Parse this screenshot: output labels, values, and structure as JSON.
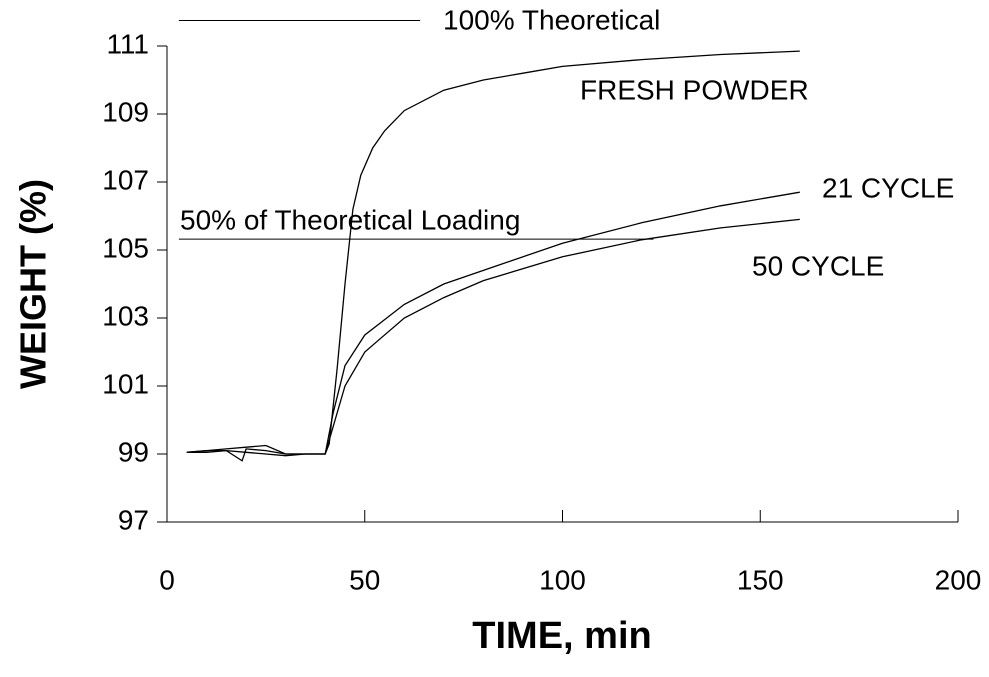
{
  "chart_data": {
    "type": "line",
    "xlabel": "TIME, min",
    "ylabel": "WEIGHT (%)",
    "xlim": [
      0,
      200
    ],
    "xticks": [
      0,
      50,
      100,
      150,
      200
    ],
    "ylim": [
      97,
      111
    ],
    "yticks": [
      97,
      99,
      101,
      103,
      105,
      107,
      109,
      111
    ],
    "series": [
      {
        "name": "FRESH POWDER",
        "color": "#000000",
        "x": [
          5,
          10,
          15,
          19,
          20,
          25,
          30,
          35,
          40,
          41,
          43,
          45,
          47,
          49,
          52,
          55,
          60,
          70,
          80,
          90,
          100,
          120,
          140,
          160
        ],
        "values": [
          99.05,
          99.1,
          99.1,
          98.8,
          99.15,
          99.1,
          99.0,
          99.0,
          99.0,
          99.3,
          101.5,
          104,
          106.2,
          107.2,
          108.0,
          108.5,
          109.1,
          109.7,
          110.0,
          110.2,
          110.4,
          110.6,
          110.75,
          110.85
        ]
      },
      {
        "name": "21 CYCLE",
        "color": "#000000",
        "x": [
          5,
          10,
          15,
          20,
          25,
          30,
          35,
          40,
          42,
          45,
          50,
          60,
          70,
          80,
          100,
          120,
          140,
          160
        ],
        "values": [
          99.05,
          99.1,
          99.15,
          99.2,
          99.25,
          99.0,
          99.0,
          99.0,
          100.2,
          101.6,
          102.5,
          103.4,
          104.0,
          104.4,
          105.2,
          105.8,
          106.3,
          106.7
        ]
      },
      {
        "name": "50 CYCLE",
        "color": "#000000",
        "x": [
          5,
          10,
          15,
          20,
          25,
          30,
          35,
          40,
          42,
          45,
          50,
          60,
          70,
          80,
          100,
          120,
          140,
          160
        ],
        "values": [
          99.05,
          99.05,
          99.1,
          99.05,
          99.0,
          98.95,
          99.0,
          99.0,
          99.8,
          101.0,
          102.0,
          103.0,
          103.6,
          104.1,
          104.8,
          105.3,
          105.65,
          105.9
        ]
      }
    ],
    "reference_lines": [
      {
        "label": "100% Theoretical",
        "y": 111.75,
        "x": [
          3,
          64
        ]
      },
      {
        "label": "50% of Theoretical Loading",
        "y": 105.32,
        "x": [
          3,
          123
        ]
      }
    ]
  }
}
